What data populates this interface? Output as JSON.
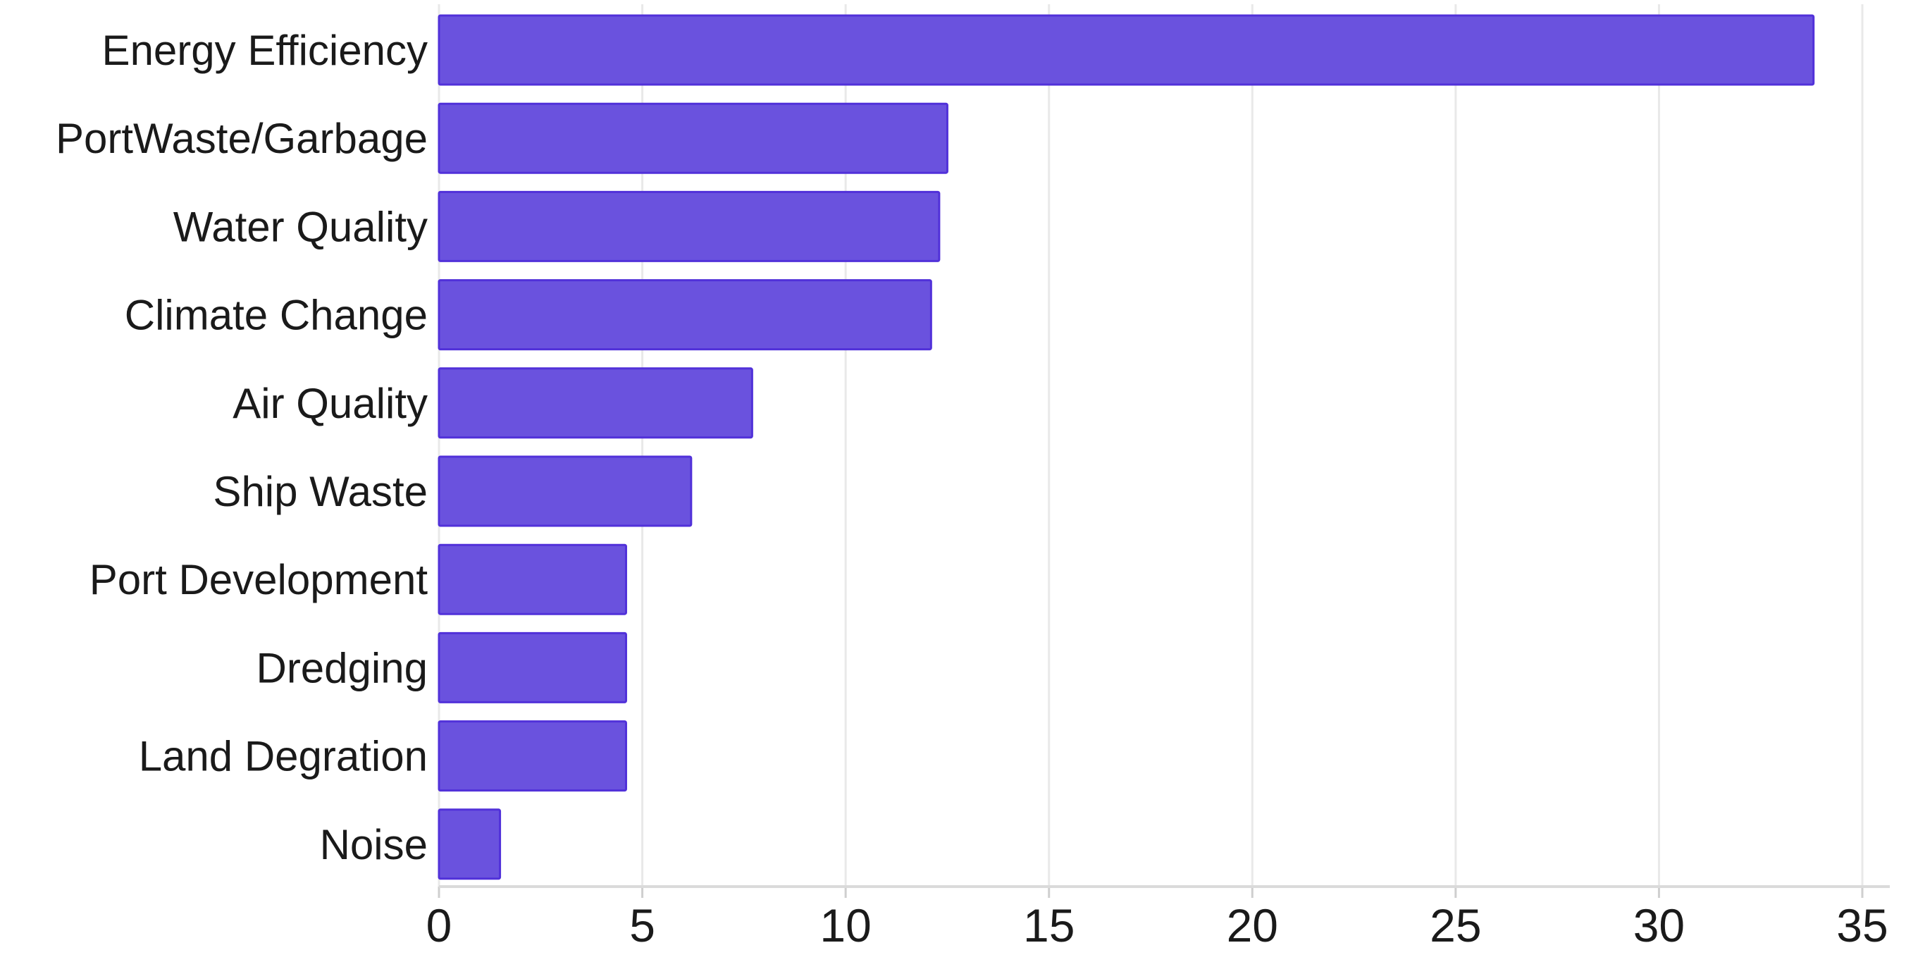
{
  "chart_data": {
    "type": "bar",
    "orientation": "horizontal",
    "title": "",
    "xlabel": "",
    "ylabel": "",
    "categories": [
      "Energy Efficiency",
      "PortWaste/Garbage",
      "Water Quality",
      "Climate Change",
      "Air Quality",
      "Ship Waste",
      "Port Development",
      "Dredging",
      "Land Degration",
      "Noise"
    ],
    "values": [
      33.8,
      12.5,
      12.3,
      12.1,
      7.7,
      6.2,
      4.6,
      4.6,
      4.6,
      1.5
    ],
    "xlim": [
      0,
      35
    ],
    "xticks": [
      0,
      5,
      10,
      15,
      20,
      25,
      30,
      35
    ],
    "grid": "vertical-light",
    "legend": "none",
    "colors": {
      "bar_fill": "#6a52de",
      "bar_border": "#5131d9",
      "gridline": "#e9e9e9",
      "axis_line": "#dadada",
      "tick_mark": "#cfcfcf",
      "text": "#1a1a1a"
    }
  }
}
